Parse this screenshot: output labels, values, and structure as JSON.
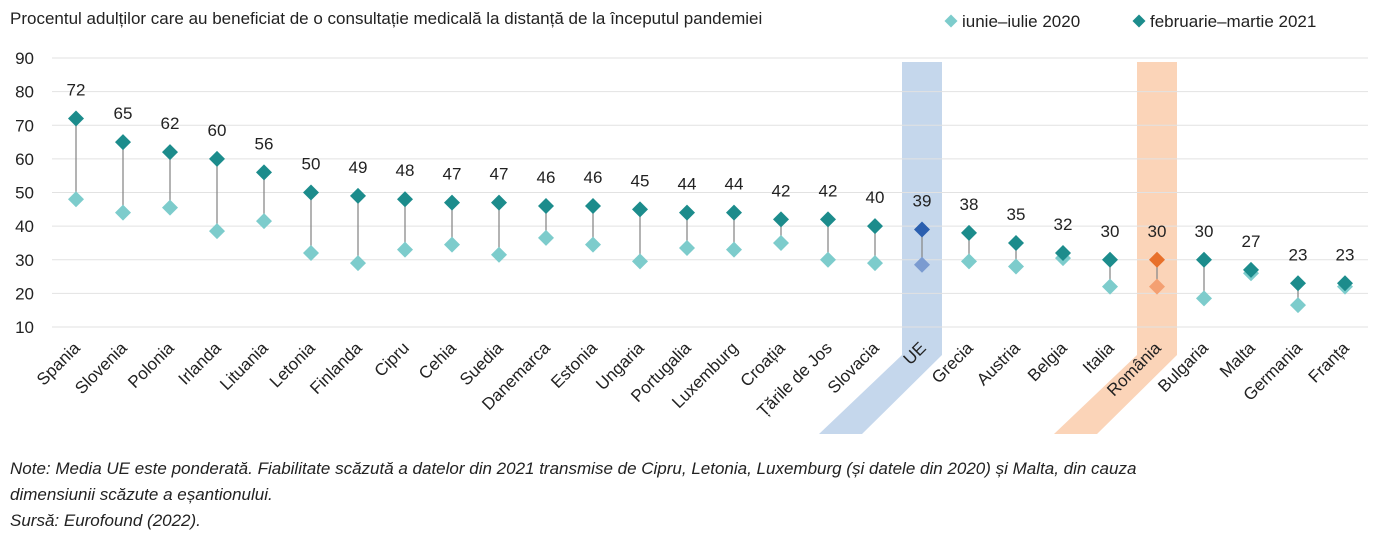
{
  "chart_data": {
    "type": "scatter",
    "title": "Procentul adulților care au beneficiat de o consultație medicală la distanță de la începutul pandemiei",
    "xlabel": "",
    "ylabel": "",
    "ylim": [
      10,
      90
    ],
    "yticks": [
      10,
      20,
      30,
      40,
      50,
      60,
      70,
      80,
      90
    ],
    "grid": true,
    "legend_position": "top-right",
    "categories": [
      "Spania",
      "Slovenia",
      "Polonia",
      "Irlanda",
      "Lituania",
      "Letonia",
      "Finlanda",
      "Cipru",
      "Cehia",
      "Suedia",
      "Danemarca",
      "Estonia",
      "Ungaria",
      "Portugalia",
      "Luxemburg",
      "Croația",
      "Țările de Jos",
      "Slovacia",
      "UE",
      "Grecia",
      "Austria",
      "Belgia",
      "Italia",
      "România",
      "Bulgaria",
      "Malta",
      "Germania",
      "Franța"
    ],
    "highlight": {
      "UE": {
        "band_color": "#c5d7ec",
        "color_2020": "#7b9bd0",
        "color_2021": "#2b5faf"
      },
      "România": {
        "band_color": "#fbd4b8",
        "color_2020": "#f4a072",
        "color_2021": "#e8702a"
      }
    },
    "series": [
      {
        "name": "iunie–iulie 2020",
        "color": "#7dcccc",
        "values": [
          48,
          44,
          45.5,
          38.5,
          41.5,
          32,
          29,
          33,
          34.5,
          31.5,
          36.5,
          34.5,
          29.5,
          33.5,
          33,
          35,
          30,
          29,
          28.5,
          29.5,
          28,
          30.5,
          22,
          22,
          18.5,
          26,
          16.5,
          22
        ]
      },
      {
        "name": "februarie–martie 2021",
        "color": "#1c8c8c",
        "values": [
          72,
          65,
          62,
          60,
          56,
          50,
          49,
          48,
          47,
          47,
          46,
          46,
          45,
          44,
          44,
          42,
          42,
          40,
          39,
          38,
          35,
          32,
          30,
          30,
          30,
          27,
          23,
          23
        ]
      }
    ],
    "data_labels": [
      "72",
      "65",
      "62",
      "60",
      "56",
      "50",
      "49",
      "48",
      "47",
      "47",
      "46",
      "46",
      "45",
      "44",
      "44",
      "42",
      "42",
      "40",
      "39",
      "38",
      "35",
      "32",
      "30",
      "30",
      "30",
      "27",
      "23",
      "23"
    ]
  },
  "notes": {
    "line1": "Note: Media UE este ponderată. Fiabilitate scăzută a datelor din 2021 transmise de Cipru, Letonia, Luxemburg (și datele din 2020) și Malta, din cauza",
    "line2": "dimensiunii scăzute a eșantionului.",
    "source": "Sursă: Eurofound (2022)."
  }
}
